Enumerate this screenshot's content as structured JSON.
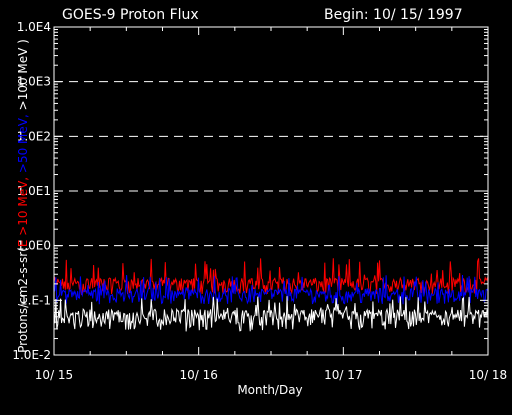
{
  "chart_data": {
    "type": "line",
    "title": "GOES-9 Proton Flux",
    "begin_label": "Begin: 10/ 15/ 1997",
    "xlabel": "Month/Day",
    "ylabel_parts": [
      {
        "text": "Protons/cm2-s-sr(",
        "color": "#ffffff"
      },
      {
        "text": "E >10 MeV, ",
        "color": "#ff0000"
      },
      {
        "text": ">50 MeV, ",
        "color": "#0000ff"
      },
      {
        "text": ">100 MeV )",
        "color": "#ffffff"
      }
    ],
    "x_ticks": [
      "10/ 15",
      "10/ 16",
      "10/ 17",
      "10/ 18"
    ],
    "y_ticks": [
      "1.0E-2",
      "1.E-1",
      "1.0E0",
      "1.0E1",
      "1.0E2",
      "1.0E3",
      "1.0E4"
    ],
    "y_scale": "log",
    "ylim": [
      0.01,
      10000
    ],
    "xlim_days": [
      0,
      3
    ],
    "grid": "dashed horizontal at each decade",
    "series": [
      {
        "color": "#ff0000",
        "base": 0.2,
        "min": 0.13,
        "max": 0.6
      },
      {
        "color": "#0000ff",
        "base": 0.13,
        "min": 0.085,
        "max": 0.3
      },
      {
        "color": "#ffffff",
        "base": 0.05,
        "min": 0.027,
        "max": 0.12
      }
    ]
  }
}
